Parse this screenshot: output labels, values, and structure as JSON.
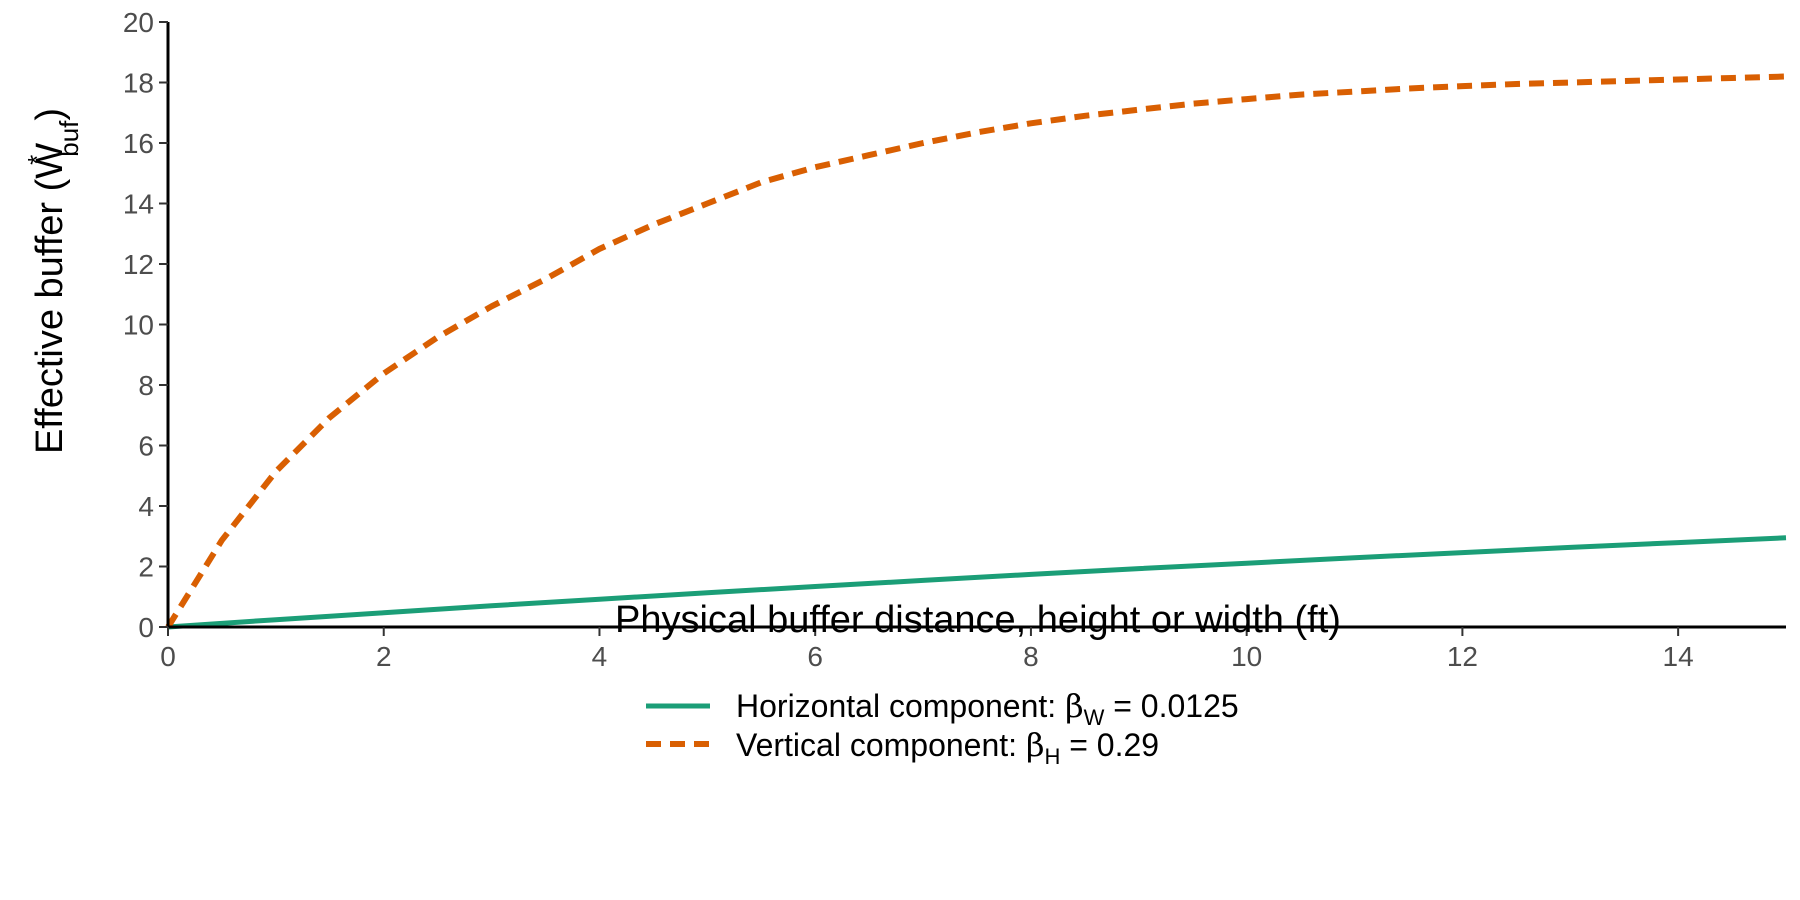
{
  "chart_data": {
    "type": "line",
    "xlabel": "Physical buffer distance, height or width (ft)",
    "ylabel": {
      "main": "Effective buffer (W",
      "superscript": "*",
      "subscript": "buf",
      "close": ")"
    },
    "xlim": [
      0,
      15
    ],
    "ylim": [
      0,
      20
    ],
    "x_ticks": [
      0,
      2,
      4,
      6,
      8,
      10,
      12,
      14
    ],
    "y_ticks": [
      0,
      2,
      4,
      6,
      8,
      10,
      12,
      14,
      16,
      18,
      20
    ],
    "grid": false,
    "legend_position": "bottom",
    "series": [
      {
        "name": "Horizontal component",
        "legend_prefix": "Horizontal component: ",
        "symbol": "β",
        "symbol_sub": "W",
        "legend_value": " = 0.0125",
        "color": "#1b9e77",
        "dash": "solid",
        "x": [
          0,
          1,
          2,
          3,
          4,
          5,
          6,
          7,
          8,
          9,
          10,
          11,
          12,
          13,
          14,
          15
        ],
        "y": [
          0,
          0.24,
          0.47,
          0.7,
          0.92,
          1.13,
          1.34,
          1.54,
          1.74,
          1.93,
          2.11,
          2.29,
          2.46,
          2.63,
          2.79,
          2.95
        ]
      },
      {
        "name": "Vertical component",
        "legend_prefix": "Vertical component: ",
        "symbol": "β",
        "symbol_sub": "H",
        "legend_value": " = 0.29",
        "color": "#d95f02",
        "dash": "dashed",
        "x": [
          0,
          0.5,
          1,
          1.5,
          2,
          2.5,
          3,
          3.5,
          4,
          4.5,
          5,
          5.5,
          6,
          6.5,
          7,
          7.5,
          8,
          8.5,
          9,
          9.5,
          10,
          10.5,
          11,
          11.5,
          12,
          12.5,
          13,
          13.5,
          14,
          14.5,
          15
        ],
        "y": [
          0,
          2.87,
          5.14,
          6.93,
          8.38,
          9.58,
          10.6,
          11.5,
          12.5,
          13.3,
          14.0,
          14.7,
          15.2,
          15.6,
          16.0,
          16.35,
          16.65,
          16.9,
          17.1,
          17.3,
          17.45,
          17.6,
          17.7,
          17.8,
          17.88,
          17.95,
          18.0,
          18.05,
          18.1,
          18.15,
          18.2
        ]
      }
    ]
  }
}
